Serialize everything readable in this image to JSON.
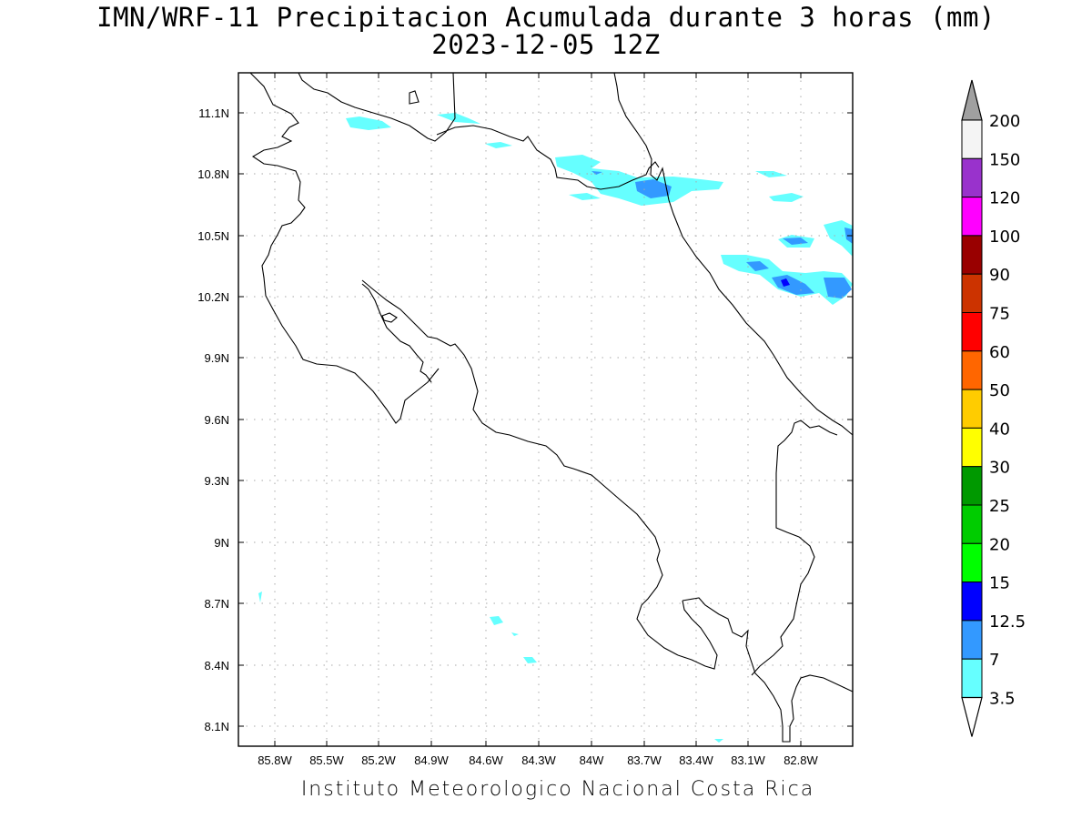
{
  "title_line1": "IMN/WRF-11 Precipitacion Acumulada durante 3 horas (mm)",
  "title_line2": "2023-12-05 12Z",
  "footer": "Instituto Meteorologico Nacional Costa Rica",
  "map": {
    "x_ticks": [
      "85.8W",
      "85.5W",
      "85.2W",
      "84.9W",
      "84.6W",
      "84.3W",
      "84W",
      "83.7W",
      "83.4W",
      "83.1W",
      "82.8W"
    ],
    "y_ticks": [
      "11.1N",
      "10.8N",
      "10.5N",
      "10.2N",
      "9.9N",
      "9.6N",
      "9.3N",
      "9N",
      "8.7N",
      "8.4N",
      "8.1N"
    ],
    "grid": true
  },
  "colorbar": {
    "labels": [
      "200",
      "150",
      "120",
      "100",
      "90",
      "75",
      "60",
      "50",
      "40",
      "30",
      "25",
      "20",
      "15",
      "12.5",
      "7",
      "3.5"
    ],
    "colors": [
      "#f4f4f4",
      "#9932cc",
      "#ff00ff",
      "#990000",
      "#cc3300",
      "#ff0000",
      "#ff6600",
      "#ffcc00",
      "#ffff00",
      "#009900",
      "#00cc00",
      "#00ff00",
      "#0000ff",
      "#3399ff",
      "#66ffff"
    ],
    "top_cap_color": "#a0a0a0",
    "bottom_cap_color": "#ffffff"
  },
  "precip_colors": {
    "light": "#66ffff",
    "medium": "#3399ff",
    "heavy": "#0000ff"
  }
}
